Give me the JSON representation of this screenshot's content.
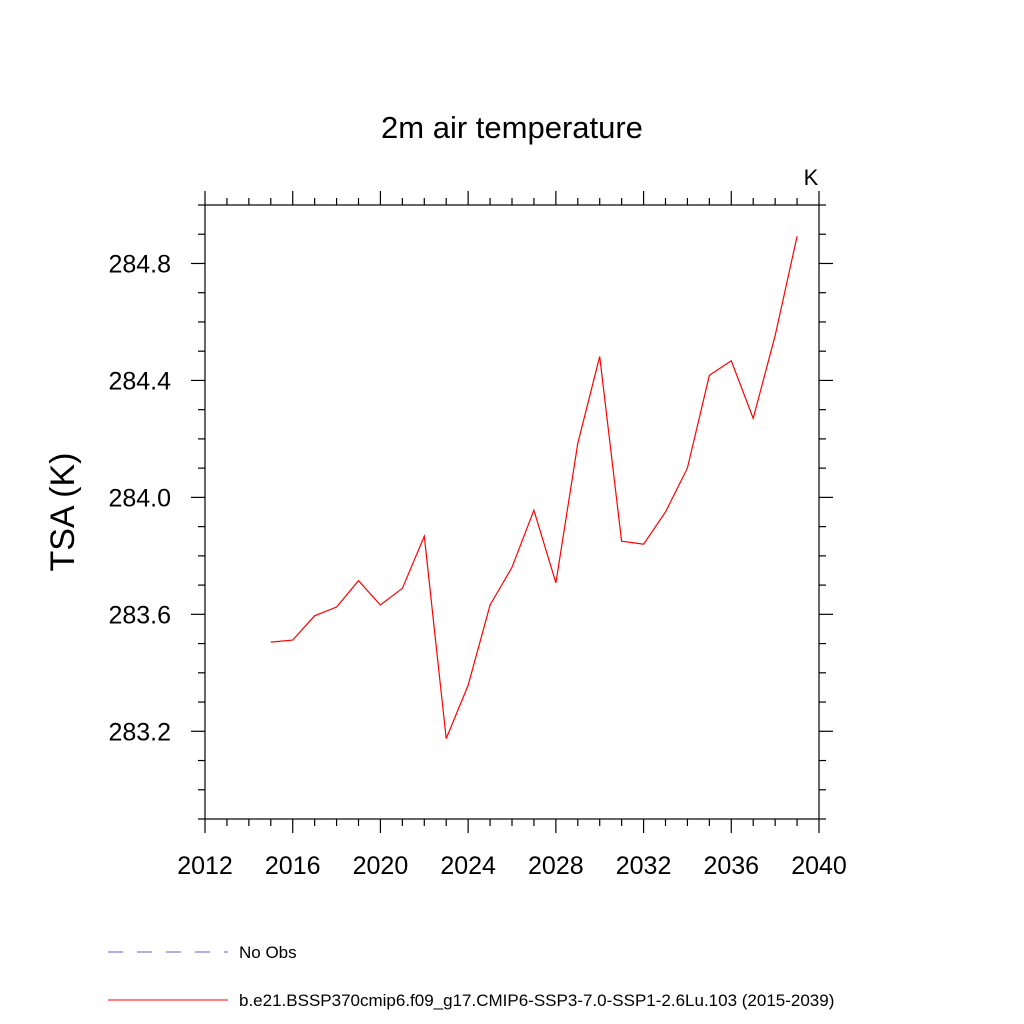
{
  "chart_data": {
    "type": "line",
    "title": "2m air temperature",
    "units": "K",
    "xlabel": "",
    "ylabel": "TSA  (K)",
    "xlim": [
      2012,
      2040
    ],
    "ylim": [
      282.9,
      285.0
    ],
    "x_ticks": [
      2012,
      2016,
      2020,
      2024,
      2028,
      2032,
      2036,
      2040
    ],
    "x_tick_labels": [
      "2012",
      "2016",
      "2020",
      "2024",
      "2028",
      "2032",
      "2036",
      "2040"
    ],
    "x_minor_step": 1,
    "y_ticks": [
      283.2,
      283.6,
      284.0,
      284.4,
      284.8
    ],
    "y_tick_labels": [
      "283.2",
      "283.6",
      "284.0",
      "284.4",
      "284.8"
    ],
    "y_minor_step": 0.1,
    "grid": false,
    "series": [
      {
        "name": "b.e21.BSSP370cmip6.f09_g17.CMIP6-SSP3-7.0-SSP1-2.6Lu.103 (2015-2039)",
        "color": "#ff0000",
        "style": "solid",
        "x": [
          2015,
          2016,
          2017,
          2018,
          2019,
          2020,
          2021,
          2022,
          2023,
          2024,
          2025,
          2026,
          2027,
          2028,
          2029,
          2030,
          2031,
          2032,
          2033,
          2034,
          2035,
          2036,
          2037,
          2038,
          2039
        ],
        "values": [
          283.505,
          283.512,
          283.595,
          283.625,
          283.715,
          283.632,
          283.689,
          283.867,
          283.175,
          283.357,
          283.632,
          283.761,
          283.956,
          283.708,
          284.185,
          284.482,
          283.85,
          283.84,
          283.95,
          284.1,
          284.418,
          284.467,
          284.27,
          284.553,
          284.893
        ]
      }
    ],
    "legend": {
      "placement": "bottom-left",
      "entries": [
        {
          "label": "No Obs",
          "color": "#6a5acd",
          "style": "dashed"
        },
        {
          "label": "b.e21.BSSP370cmip6.f09_g17.CMIP6-SSP3-7.0-SSP1-2.6Lu.103 (2015-2039)",
          "color": "#ff0000",
          "style": "solid"
        }
      ]
    }
  }
}
